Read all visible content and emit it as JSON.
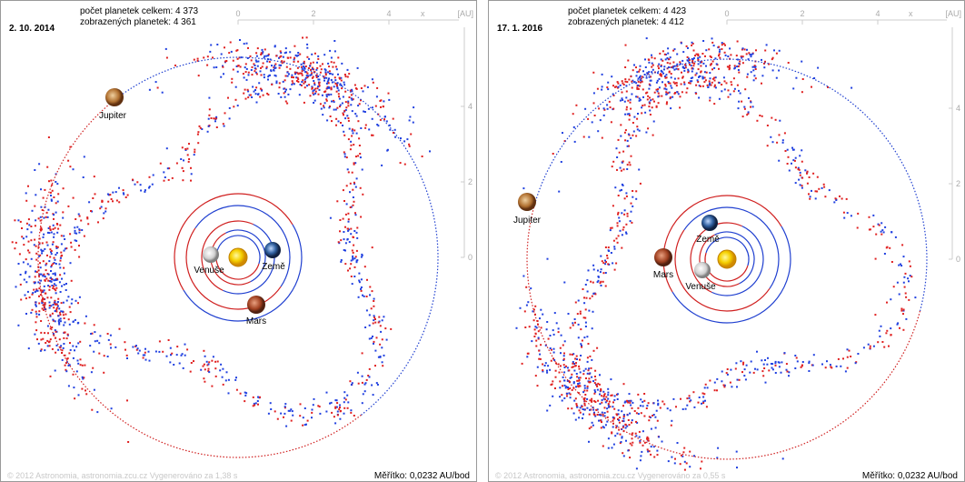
{
  "panels": [
    {
      "date": "2. 10. 2014",
      "total": "počet planetek celkem: 4 373",
      "shown": "zobrazených planetek: 4 361",
      "x_ticks": [
        "0",
        "2",
        "4"
      ],
      "x_label": "x",
      "unit": "[AU]",
      "y_ticks": [
        "4",
        "2",
        "0"
      ],
      "planets": {
        "jupiter": "Jupiter",
        "earth": "Země",
        "venus": "Venuše",
        "mars": "Mars"
      },
      "footer": "© 2012 Astronomia, astronomia.zcu.cz   Vygenerováno za 1,38 s",
      "scale": "Měřítko: 0,0232 AU/bod"
    },
    {
      "date": "17. 1. 2016",
      "total": "počet planetek celkem: 4 423",
      "shown": "zobrazených planetek: 4 412",
      "x_ticks": [
        "0",
        "2",
        "4"
      ],
      "x_label": "x",
      "unit": "[AU]",
      "y_ticks": [
        "4",
        "2",
        "0"
      ],
      "planets": {
        "jupiter": "Jupiter",
        "earth": "Země",
        "venus": "Venuše",
        "mars": "Mars"
      },
      "footer": "© 2012 Astronomia, astronomia.zcu.cz   Vygenerováno za 0,55 s",
      "scale": "Měřítko: 0,0232 AU/bod"
    }
  ]
}
